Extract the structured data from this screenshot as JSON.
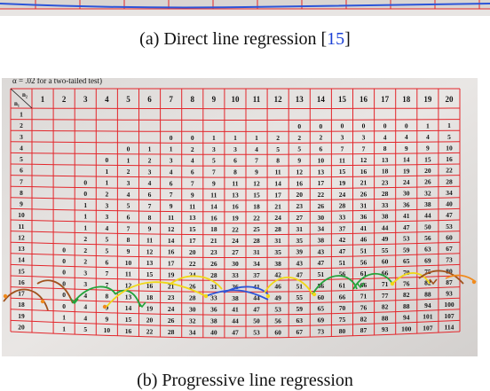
{
  "figure": {
    "caption_a": {
      "prefix": "(a)  Direct line regression [",
      "ref": "15",
      "suffix": "]"
    },
    "caption_b": "(b)  Progressive line regression"
  },
  "photo": {
    "header_text": "α = .02 for a two-tailed test)",
    "corner_top": "n₂",
    "corner_left": "n₁",
    "columns": [
      "1",
      "2",
      "3",
      "4",
      "5",
      "6",
      "7",
      "8",
      "9",
      "10",
      "11",
      "12",
      "13",
      "14",
      "15",
      "16",
      "17",
      "18",
      "19",
      "20"
    ],
    "rows": [
      {
        "n1": "1",
        "cells": [
          "",
          "",
          "",
          "",
          "",
          "",
          "",
          "",
          "",
          "",
          "",
          "",
          "",
          "",
          "",
          "",
          "",
          "",
          "",
          ""
        ]
      },
      {
        "n1": "2",
        "cells": [
          "",
          "",
          "",
          "",
          "",
          "",
          "",
          "",
          "",
          "",
          "",
          "",
          "0",
          "0",
          "0",
          "0",
          "0",
          "0",
          "1",
          "1"
        ]
      },
      {
        "n1": "3",
        "cells": [
          "",
          "",
          "",
          "",
          "",
          "",
          "0",
          "0",
          "1",
          "1",
          "1",
          "2",
          "2",
          "2",
          "3",
          "3",
          "4",
          "4",
          "4",
          "5"
        ]
      },
      {
        "n1": "4",
        "cells": [
          "",
          "",
          "",
          "",
          "0",
          "1",
          "1",
          "2",
          "3",
          "3",
          "4",
          "5",
          "5",
          "6",
          "7",
          "7",
          "8",
          "9",
          "9",
          "10"
        ]
      },
      {
        "n1": "5",
        "cells": [
          "",
          "",
          "",
          "0",
          "1",
          "2",
          "3",
          "4",
          "5",
          "6",
          "7",
          "8",
          "9",
          "10",
          "11",
          "12",
          "13",
          "14",
          "15",
          "16"
        ]
      },
      {
        "n1": "6",
        "cells": [
          "",
          "",
          "",
          "1",
          "2",
          "3",
          "4",
          "6",
          "7",
          "8",
          "9",
          "11",
          "12",
          "13",
          "15",
          "16",
          "18",
          "19",
          "20",
          "22"
        ]
      },
      {
        "n1": "7",
        "cells": [
          "",
          "",
          "0",
          "1",
          "3",
          "4",
          "6",
          "7",
          "9",
          "11",
          "12",
          "14",
          "16",
          "17",
          "19",
          "21",
          "23",
          "24",
          "26",
          "28"
        ]
      },
      {
        "n1": "8",
        "cells": [
          "",
          "",
          "0",
          "2",
          "4",
          "6",
          "7",
          "9",
          "11",
          "13",
          "15",
          "17",
          "20",
          "22",
          "24",
          "26",
          "28",
          "30",
          "32",
          "34"
        ]
      },
      {
        "n1": "9",
        "cells": [
          "",
          "",
          "1",
          "3",
          "5",
          "7",
          "9",
          "11",
          "14",
          "16",
          "18",
          "21",
          "23",
          "26",
          "28",
          "31",
          "33",
          "36",
          "38",
          "40"
        ]
      },
      {
        "n1": "10",
        "cells": [
          "",
          "",
          "1",
          "3",
          "6",
          "8",
          "11",
          "13",
          "16",
          "19",
          "22",
          "24",
          "27",
          "30",
          "33",
          "36",
          "38",
          "41",
          "44",
          "47"
        ]
      },
      {
        "n1": "11",
        "cells": [
          "",
          "",
          "1",
          "4",
          "7",
          "9",
          "12",
          "15",
          "18",
          "22",
          "25",
          "28",
          "31",
          "34",
          "37",
          "41",
          "44",
          "47",
          "50",
          "53"
        ]
      },
      {
        "n1": "12",
        "cells": [
          "",
          "",
          "2",
          "5",
          "8",
          "11",
          "14",
          "17",
          "21",
          "24",
          "28",
          "31",
          "35",
          "38",
          "42",
          "46",
          "49",
          "53",
          "56",
          "60"
        ]
      },
      {
        "n1": "13",
        "cells": [
          "",
          "0",
          "2",
          "5",
          "9",
          "12",
          "16",
          "20",
          "23",
          "27",
          "31",
          "35",
          "39",
          "43",
          "47",
          "51",
          "55",
          "59",
          "63",
          "67"
        ]
      },
      {
        "n1": "14",
        "cells": [
          "",
          "0",
          "2",
          "6",
          "10",
          "13",
          "17",
          "22",
          "26",
          "30",
          "34",
          "38",
          "43",
          "47",
          "51",
          "56",
          "60",
          "65",
          "69",
          "73"
        ]
      },
      {
        "n1": "15",
        "cells": [
          "",
          "0",
          "3",
          "7",
          "11",
          "15",
          "19",
          "24",
          "28",
          "33",
          "37",
          "42",
          "47",
          "51",
          "56",
          "61",
          "66",
          "70",
          "75",
          "80"
        ]
      },
      {
        "n1": "16",
        "cells": [
          "",
          "0",
          "3",
          "7",
          "12",
          "16",
          "21",
          "26",
          "31",
          "36",
          "41",
          "46",
          "51",
          "56",
          "61",
          "66",
          "71",
          "76",
          "82",
          "87"
        ]
      },
      {
        "n1": "17",
        "cells": [
          "",
          "0",
          "4",
          "8",
          "13",
          "18",
          "23",
          "28",
          "33",
          "38",
          "44",
          "49",
          "55",
          "60",
          "66",
          "71",
          "77",
          "82",
          "88",
          "93"
        ]
      },
      {
        "n1": "18",
        "cells": [
          "",
          "0",
          "4",
          "9",
          "14",
          "19",
          "24",
          "30",
          "36",
          "41",
          "47",
          "53",
          "59",
          "65",
          "70",
          "76",
          "82",
          "88",
          "94",
          "100"
        ]
      },
      {
        "n1": "19",
        "cells": [
          "",
          "1",
          "4",
          "9",
          "15",
          "20",
          "26",
          "32",
          "38",
          "44",
          "50",
          "56",
          "63",
          "69",
          "75",
          "82",
          "88",
          "94",
          "101",
          "107"
        ]
      },
      {
        "n1": "20",
        "cells": [
          "",
          "1",
          "5",
          "10",
          "16",
          "22",
          "28",
          "34",
          "40",
          "47",
          "53",
          "60",
          "67",
          "73",
          "80",
          "87",
          "93",
          "100",
          "107",
          "114"
        ]
      }
    ],
    "colors": {
      "paper": "#e9e6e4",
      "grid": "#e3262b",
      "ink": "#141414",
      "line_brown": "#a0521d",
      "line_green": "#23a33a",
      "line_yellow": "#f0d816",
      "line_blue": "#2c55d8",
      "line_orange": "#f08a1c"
    }
  }
}
